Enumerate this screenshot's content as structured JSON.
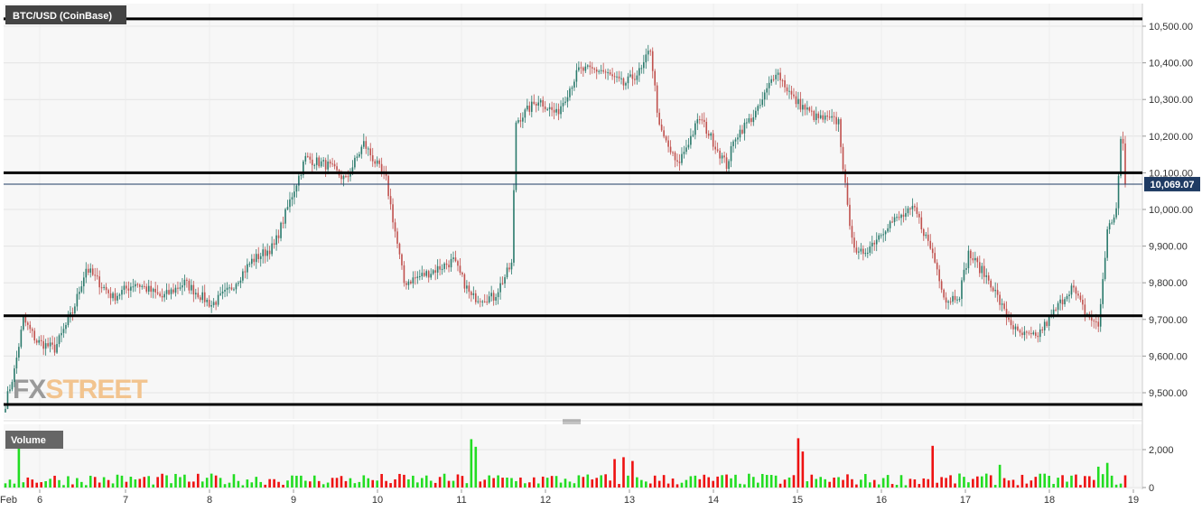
{
  "chart_data": [
    {
      "type": "candlestick",
      "title": "BTC/USD (CoinBase)",
      "ylim": [
        9450,
        10550
      ],
      "y_ticks": [
        9500,
        9600,
        9700,
        9800,
        9900,
        10000,
        10100,
        10200,
        10300,
        10400,
        10500
      ],
      "y_tick_labels": [
        "9,500.00",
        "9,600.00",
        "9,700.00",
        "9,800.00",
        "9,900.00",
        "10,000.00",
        "10,100.00",
        "10,200.00",
        "10,300.00",
        "10,400.00",
        "10,500.00"
      ],
      "current_price": 10069.07,
      "current_price_label": "10,069.07",
      "horizontal_levels": [
        10520,
        10100,
        9710,
        9468
      ],
      "x_tick_labels": [
        "Feb",
        "6",
        "7",
        "8",
        "9",
        "10",
        "11",
        "12",
        "13",
        "14",
        "15",
        "16",
        "17",
        "18",
        "19"
      ],
      "grid": true,
      "up_color": "#2a7a6c",
      "down_color": "#c0504d",
      "waypoints": [
        [
          0,
          9470
        ],
        [
          4,
          9560
        ],
        [
          8,
          9700
        ],
        [
          14,
          9640
        ],
        [
          22,
          9620
        ],
        [
          30,
          9720
        ],
        [
          36,
          9840
        ],
        [
          48,
          9760
        ],
        [
          58,
          9800
        ],
        [
          70,
          9760
        ],
        [
          80,
          9800
        ],
        [
          92,
          9740
        ],
        [
          100,
          9780
        ],
        [
          110,
          9860
        ],
        [
          120,
          9900
        ],
        [
          128,
          10040
        ],
        [
          134,
          10140
        ],
        [
          144,
          10120
        ],
        [
          152,
          10080
        ],
        [
          160,
          10180
        ],
        [
          170,
          10080
        ],
        [
          178,
          9800
        ],
        [
          190,
          9830
        ],
        [
          200,
          9860
        ],
        [
          208,
          9760
        ],
        [
          218,
          9760
        ],
        [
          226,
          9850
        ],
        [
          228,
          10240
        ],
        [
          238,
          10300
        ],
        [
          246,
          10260
        ],
        [
          256,
          10380
        ],
        [
          266,
          10380
        ],
        [
          276,
          10340
        ],
        [
          284,
          10380
        ],
        [
          288,
          10440
        ],
        [
          292,
          10220
        ],
        [
          300,
          10120
        ],
        [
          310,
          10250
        ],
        [
          322,
          10120
        ],
        [
          326,
          10200
        ],
        [
          336,
          10270
        ],
        [
          344,
          10380
        ],
        [
          352,
          10300
        ],
        [
          362,
          10250
        ],
        [
          372,
          10240
        ],
        [
          376,
          10000
        ],
        [
          380,
          9870
        ],
        [
          386,
          9900
        ],
        [
          394,
          9960
        ],
        [
          406,
          10000
        ],
        [
          414,
          9880
        ],
        [
          420,
          9750
        ],
        [
          426,
          9770
        ],
        [
          430,
          9880
        ],
        [
          440,
          9800
        ],
        [
          446,
          9720
        ],
        [
          452,
          9660
        ],
        [
          460,
          9650
        ],
        [
          466,
          9700
        ],
        [
          476,
          9790
        ],
        [
          482,
          9720
        ],
        [
          488,
          9680
        ],
        [
          492,
          9940
        ],
        [
          496,
          10000
        ],
        [
          498,
          10180
        ],
        [
          500,
          10069
        ]
      ]
    },
    {
      "type": "bar",
      "title": "Volume",
      "ylim": [
        0,
        2700
      ],
      "y_ticks": [
        0,
        2000
      ],
      "y_tick_labels": [
        "0",
        "2,000"
      ],
      "up_color": "#22dd22",
      "down_color": "#ee1111",
      "spikes": [
        [
          6,
          2600,
          "up"
        ],
        [
          35,
          1400,
          "up"
        ],
        [
          208,
          2550,
          "up"
        ],
        [
          210,
          2150,
          "up"
        ],
        [
          272,
          1500,
          "down"
        ],
        [
          276,
          1600,
          "down"
        ],
        [
          280,
          1400,
          "down"
        ],
        [
          354,
          2600,
          "down"
        ],
        [
          356,
          1900,
          "down"
        ],
        [
          414,
          2200,
          "down"
        ],
        [
          444,
          1200,
          "up"
        ],
        [
          451,
          1300,
          "up"
        ],
        [
          457,
          1100,
          "down"
        ],
        [
          488,
          1100,
          "up"
        ],
        [
          492,
          1300,
          "up"
        ],
        [
          497,
          1000,
          "down"
        ]
      ]
    }
  ],
  "watermark": {
    "part1": "FX",
    "part2": "STREET"
  }
}
